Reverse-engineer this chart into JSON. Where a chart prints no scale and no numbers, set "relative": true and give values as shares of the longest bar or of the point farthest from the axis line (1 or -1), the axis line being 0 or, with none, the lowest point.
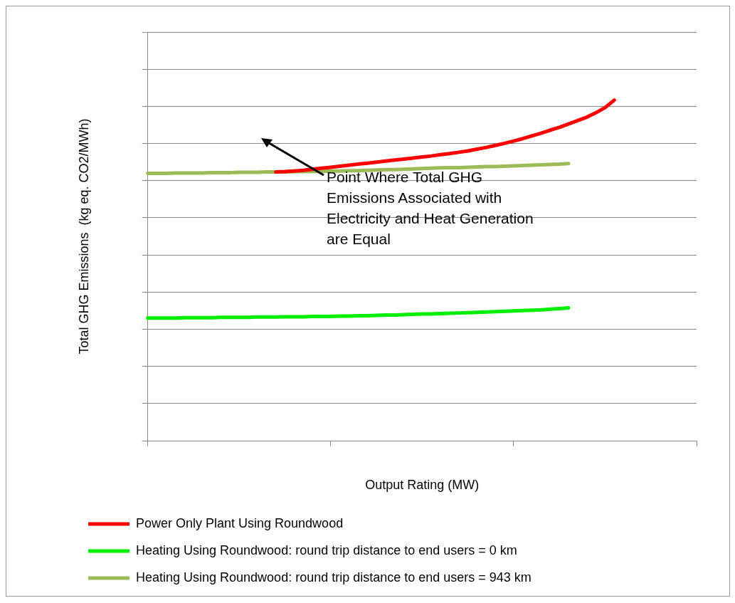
{
  "chart_data": {
    "type": "line",
    "relative": true,
    "xlabel": "Output Rating (MW)",
    "ylabel": "Total GHG Emissions  (kg eq. CO2/MWh)",
    "grid": "y",
    "legend": "bottom",
    "marker": "none",
    "line_style": "solid",
    "categories": [
      null,
      null,
      null,
      null,
      null,
      null,
      null,
      null,
      null,
      null,
      null,
      null,
      null,
      null,
      null,
      null,
      null,
      null,
      null,
      null,
      null,
      null,
      null,
      null,
      null,
      null,
      null,
      null,
      null,
      null,
      null,
      null,
      null,
      null,
      null,
      null,
      null,
      null,
      null,
      null,
      null,
      null,
      null,
      null,
      null,
      null,
      null,
      null,
      null,
      null,
      null,
      null,
      null,
      null,
      null,
      null,
      null,
      null,
      null,
      null,
      null
    ],
    "series": [
      {
        "name": "Power Only Plant Using Roundwood",
        "color": "#ff0000",
        "values": [
          null,
          null,
          null,
          null,
          null,
          null,
          null,
          null,
          null,
          null,
          null,
          null,
          null,
          null,
          0.789,
          0.79,
          0.792,
          0.794,
          0.797,
          0.8,
          0.803,
          0.806,
          0.809,
          0.812,
          0.815,
          0.818,
          0.821,
          0.824,
          0.827,
          0.83,
          0.833,
          0.836,
          0.84,
          0.843,
          0.847,
          0.851,
          0.856,
          0.861,
          0.867,
          0.873,
          0.88,
          0.887,
          0.895,
          0.903,
          0.912,
          0.92,
          0.93,
          0.94,
          0.95,
          0.963,
          0.978,
          1.0,
          null,
          null,
          null,
          null,
          null,
          null,
          null,
          null,
          null
        ]
      },
      {
        "name": "Heating Using Roundwood: round trip distance to end users = 0 km",
        "color": "#00ee00",
        "values": [
          0.36,
          0.36,
          0.36,
          0.36,
          0.361,
          0.361,
          0.361,
          0.361,
          0.362,
          0.362,
          0.362,
          0.362,
          0.363,
          0.363,
          0.363,
          0.364,
          0.364,
          0.364,
          0.365,
          0.365,
          0.365,
          0.366,
          0.366,
          0.367,
          0.367,
          0.368,
          0.369,
          0.369,
          0.37,
          0.371,
          0.372,
          0.372,
          0.373,
          0.374,
          0.375,
          0.376,
          0.377,
          0.378,
          0.379,
          0.38,
          0.381,
          0.382,
          0.383,
          0.384,
          0.386,
          0.388,
          0.39,
          null,
          null,
          null,
          null,
          null,
          null,
          null,
          null,
          null,
          null,
          null,
          null,
          null,
          null
        ]
      },
      {
        "name": "Heating Using Roundwood: round trip distance to end users = 943 km",
        "color": "#9bbb59",
        "values": [
          0.785,
          0.785,
          0.785,
          0.786,
          0.786,
          0.786,
          0.786,
          0.787,
          0.787,
          0.787,
          0.788,
          0.788,
          0.788,
          0.789,
          0.789,
          0.789,
          0.79,
          0.79,
          0.791,
          0.791,
          0.792,
          0.792,
          0.793,
          0.793,
          0.794,
          0.795,
          0.796,
          0.796,
          0.797,
          0.798,
          0.799,
          0.8,
          0.801,
          0.802,
          0.802,
          0.803,
          0.804,
          0.805,
          0.805,
          0.806,
          0.807,
          0.808,
          0.809,
          0.81,
          0.811,
          0.812,
          0.814,
          null,
          null,
          null,
          null,
          null,
          null,
          null,
          null,
          null,
          null,
          null,
          null,
          null,
          null
        ]
      }
    ],
    "annotations": [
      "Point Where Total GHG Emissions  Associated with Electricity and Heat Generation are Equal"
    ]
  }
}
